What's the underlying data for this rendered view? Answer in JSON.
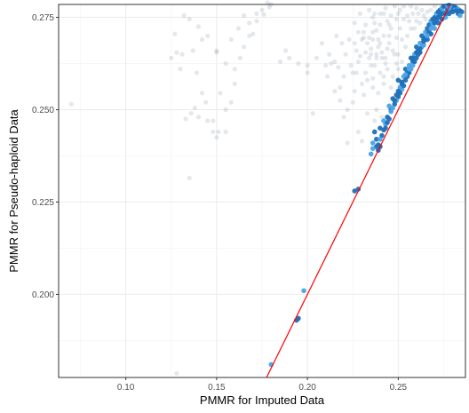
{
  "chart_data": {
    "type": "scatter",
    "xlabel": "PMMR for Imputed Data",
    "ylabel": "PMMR for Pseudo-haploid Data",
    "xlim": [
      0.063,
      0.287
    ],
    "ylim": [
      0.1775,
      0.2785
    ],
    "x_ticks": [
      0.1,
      0.15,
      0.2,
      0.25
    ],
    "x_tick_labels": [
      "0.10",
      "0.15",
      "0.20",
      "0.25"
    ],
    "y_ticks": [
      0.2,
      0.225,
      0.25,
      0.275
    ],
    "y_tick_labels": [
      "0.200",
      "0.225",
      "0.250",
      "0.275"
    ],
    "grid": true,
    "reference_line": {
      "type": "identity",
      "color": "#ff0000"
    },
    "colors": {
      "background_points": "#2f4f6f",
      "highlight_points": "#1f6fb8",
      "highlight_points_light": "#4aa3e8"
    },
    "series": [
      {
        "points": [
          [
            0.07,
            0.2515
          ],
          [
            0.128,
            0.1786
          ],
          [
            0.135,
            0.2315
          ],
          [
            0.14,
            0.248
          ],
          [
            0.138,
            0.2505
          ],
          [
            0.145,
            0.247
          ],
          [
            0.148,
            0.244
          ],
          [
            0.15,
            0.2425
          ],
          [
            0.142,
            0.2545
          ],
          [
            0.139,
            0.26
          ],
          [
            0.13,
            0.261
          ],
          [
            0.125,
            0.264
          ],
          [
            0.127,
            0.2705
          ],
          [
            0.132,
            0.2755
          ],
          [
            0.135,
            0.2745
          ],
          [
            0.14,
            0.2725
          ],
          [
            0.145,
            0.27
          ],
          [
            0.15,
            0.266
          ],
          [
            0.155,
            0.2625
          ],
          [
            0.158,
            0.269
          ],
          [
            0.162,
            0.272
          ],
          [
            0.165,
            0.2755
          ],
          [
            0.168,
            0.2735
          ],
          [
            0.17,
            0.2705
          ],
          [
            0.172,
            0.274
          ],
          [
            0.175,
            0.277
          ],
          [
            0.178,
            0.279
          ],
          [
            0.18,
            0.2785
          ],
          [
            0.176,
            0.2758
          ],
          [
            0.165,
            0.267
          ],
          [
            0.16,
            0.257
          ],
          [
            0.158,
            0.252
          ],
          [
            0.155,
            0.25
          ],
          [
            0.148,
            0.247
          ],
          [
            0.136,
            0.249
          ],
          [
            0.133,
            0.2475
          ],
          [
            0.144,
            0.252
          ],
          [
            0.152,
            0.2545
          ],
          [
            0.16,
            0.261
          ],
          [
            0.15,
            0.2655
          ],
          [
            0.142,
            0.269
          ],
          [
            0.137,
            0.266
          ],
          [
            0.131,
            0.265
          ],
          [
            0.128,
            0.2655
          ],
          [
            0.163,
            0.264
          ],
          [
            0.168,
            0.27
          ],
          [
            0.179,
            0.2778
          ],
          [
            0.172,
            0.276
          ],
          [
            0.155,
            0.244
          ],
          [
            0.151,
            0.244
          ],
          [
            0.19,
            0.264
          ],
          [
            0.195,
            0.2625
          ],
          [
            0.2,
            0.262
          ],
          [
            0.205,
            0.264
          ],
          [
            0.21,
            0.262
          ],
          [
            0.215,
            0.263
          ],
          [
            0.218,
            0.256
          ],
          [
            0.22,
            0.248
          ],
          [
            0.222,
            0.25
          ],
          [
            0.225,
            0.252
          ],
          [
            0.203,
            0.249
          ],
          [
            0.228,
            0.244
          ],
          [
            0.23,
            0.2415
          ],
          [
            0.222,
            0.241
          ],
          [
            0.232,
            0.26
          ],
          [
            0.235,
            0.262
          ],
          [
            0.238,
            0.265
          ],
          [
            0.24,
            0.268
          ],
          [
            0.242,
            0.27
          ],
          [
            0.245,
            0.268
          ],
          [
            0.248,
            0.265
          ],
          [
            0.25,
            0.261
          ],
          [
            0.252,
            0.263
          ],
          [
            0.254,
            0.267
          ],
          [
            0.246,
            0.272
          ],
          [
            0.244,
            0.274
          ],
          [
            0.24,
            0.276
          ],
          [
            0.236,
            0.275
          ],
          [
            0.232,
            0.273
          ],
          [
            0.228,
            0.271
          ],
          [
            0.226,
            0.268
          ],
          [
            0.234,
            0.2695
          ],
          [
            0.238,
            0.2715
          ],
          [
            0.243,
            0.2775
          ],
          [
            0.25,
            0.276
          ],
          [
            0.256,
            0.274
          ],
          [
            0.258,
            0.276
          ],
          [
            0.26,
            0.2775
          ],
          [
            0.262,
            0.2735
          ],
          [
            0.255,
            0.27
          ],
          [
            0.249,
            0.2695
          ],
          [
            0.247,
            0.266
          ],
          [
            0.241,
            0.264
          ],
          [
            0.237,
            0.262
          ],
          [
            0.233,
            0.258
          ],
          [
            0.231,
            0.254
          ],
          [
            0.236,
            0.256
          ],
          [
            0.239,
            0.2545
          ],
          [
            0.244,
            0.261
          ],
          [
            0.227,
            0.26
          ],
          [
            0.224,
            0.262
          ],
          [
            0.221,
            0.265
          ],
          [
            0.219,
            0.268
          ],
          [
            0.216,
            0.27
          ],
          [
            0.212,
            0.265
          ],
          [
            0.208,
            0.268
          ],
          [
            0.229,
            0.276
          ],
          [
            0.234,
            0.277
          ],
          [
            0.248,
            0.278
          ],
          [
            0.253,
            0.278
          ],
          [
            0.263,
            0.277
          ],
          [
            0.266,
            0.2765
          ],
          [
            0.259,
            0.272
          ],
          [
            0.242,
            0.259
          ],
          [
            0.238,
            0.25
          ],
          [
            0.241,
            0.248
          ],
          [
            0.246,
            0.256
          ],
          [
            0.229,
            0.2645
          ],
          [
            0.223,
            0.269
          ],
          [
            0.231,
            0.271
          ],
          [
            0.226,
            0.2735
          ],
          [
            0.237,
            0.2735
          ],
          [
            0.251,
            0.272
          ],
          [
            0.245,
            0.27
          ],
          [
            0.239,
            0.269
          ],
          [
            0.235,
            0.2665
          ],
          [
            0.232,
            0.2655
          ],
          [
            0.217,
            0.2615
          ],
          [
            0.213,
            0.2625
          ],
          [
            0.241,
            0.2655
          ],
          [
            0.252,
            0.269
          ],
          [
            0.257,
            0.272
          ],
          [
            0.26,
            0.274
          ],
          [
            0.264,
            0.2755
          ],
          [
            0.233,
            0.249
          ],
          [
            0.237,
            0.247
          ],
          [
            0.215,
            0.255
          ],
          [
            0.218,
            0.2525
          ],
          [
            0.2,
            0.26
          ],
          [
            0.185,
            0.263
          ],
          [
            0.188,
            0.266
          ],
          [
            0.211,
            0.259
          ],
          [
            0.226,
            0.255
          ],
          [
            0.23,
            0.257
          ],
          [
            0.243,
            0.2625
          ],
          [
            0.249,
            0.2625
          ],
          [
            0.24,
            0.26
          ],
          [
            0.236,
            0.2585
          ],
          [
            0.242,
            0.257
          ],
          [
            0.247,
            0.259
          ],
          [
            0.25,
            0.265
          ],
          [
            0.244,
            0.2665
          ],
          [
            0.239,
            0.267
          ],
          [
            0.236,
            0.269
          ],
          [
            0.233,
            0.268
          ],
          [
            0.23,
            0.269
          ],
          [
            0.234,
            0.264
          ],
          [
            0.228,
            0.263
          ],
          [
            0.225,
            0.26
          ],
          [
            0.22,
            0.259
          ],
          [
            0.245,
            0.273
          ],
          [
            0.249,
            0.2745
          ],
          [
            0.253,
            0.2745
          ],
          [
            0.24,
            0.273
          ],
          [
            0.237,
            0.276
          ],
          [
            0.242,
            0.276
          ],
          [
            0.246,
            0.2755
          ],
          [
            0.251,
            0.277
          ],
          [
            0.255,
            0.2755
          ],
          [
            0.257,
            0.278
          ],
          [
            0.261,
            0.276
          ],
          [
            0.265,
            0.2745
          ],
          [
            0.268,
            0.277
          ],
          [
            0.27,
            0.278
          ],
          [
            0.236,
            0.271
          ],
          [
            0.231,
            0.2695
          ],
          [
            0.227,
            0.266
          ],
          [
            0.235,
            0.265
          ],
          [
            0.238,
            0.264
          ],
          [
            0.243,
            0.264
          ]
        ]
      },
      {
        "points": [
          [
            0.18,
            0.181
          ],
          [
            0.194,
            0.193
          ],
          [
            0.195,
            0.1935
          ],
          [
            0.198,
            0.201
          ],
          [
            0.226,
            0.228
          ],
          [
            0.228,
            0.2285
          ],
          [
            0.235,
            0.238
          ],
          [
            0.24,
            0.24
          ],
          [
            0.238,
            0.242
          ],
          [
            0.236,
            0.241
          ],
          [
            0.237,
            0.244
          ],
          [
            0.24,
            0.245
          ],
          [
            0.242,
            0.247
          ],
          [
            0.244,
            0.248
          ],
          [
            0.246,
            0.25
          ],
          [
            0.243,
            0.246
          ],
          [
            0.241,
            0.243
          ],
          [
            0.239,
            0.239
          ],
          [
            0.245,
            0.251
          ],
          [
            0.247,
            0.253
          ],
          [
            0.249,
            0.254
          ],
          [
            0.251,
            0.256
          ],
          [
            0.252,
            0.257
          ],
          [
            0.25,
            0.258
          ],
          [
            0.253,
            0.259
          ],
          [
            0.255,
            0.26
          ],
          [
            0.254,
            0.261
          ],
          [
            0.256,
            0.262
          ],
          [
            0.258,
            0.263
          ],
          [
            0.257,
            0.264
          ],
          [
            0.259,
            0.265
          ],
          [
            0.261,
            0.266
          ],
          [
            0.26,
            0.267
          ],
          [
            0.262,
            0.268
          ],
          [
            0.264,
            0.269
          ],
          [
            0.263,
            0.27
          ],
          [
            0.265,
            0.271
          ],
          [
            0.266,
            0.272
          ],
          [
            0.267,
            0.273
          ],
          [
            0.268,
            0.274
          ],
          [
            0.269,
            0.2745
          ],
          [
            0.27,
            0.275
          ],
          [
            0.271,
            0.276
          ],
          [
            0.272,
            0.2765
          ],
          [
            0.273,
            0.277
          ],
          [
            0.274,
            0.2775
          ],
          [
            0.275,
            0.278
          ],
          [
            0.276,
            0.278
          ],
          [
            0.277,
            0.2782
          ],
          [
            0.278,
            0.2783
          ],
          [
            0.279,
            0.2781
          ],
          [
            0.28,
            0.278
          ],
          [
            0.281,
            0.2778
          ],
          [
            0.282,
            0.2775
          ],
          [
            0.283,
            0.2772
          ],
          [
            0.284,
            0.2768
          ],
          [
            0.278,
            0.276
          ],
          [
            0.276,
            0.275
          ],
          [
            0.274,
            0.2745
          ],
          [
            0.272,
            0.2735
          ],
          [
            0.27,
            0.272
          ],
          [
            0.268,
            0.2705
          ],
          [
            0.266,
            0.269
          ],
          [
            0.264,
            0.2675
          ],
          [
            0.262,
            0.2655
          ],
          [
            0.26,
            0.264
          ],
          [
            0.258,
            0.262
          ],
          [
            0.256,
            0.26
          ],
          [
            0.254,
            0.258
          ],
          [
            0.252,
            0.2555
          ],
          [
            0.25,
            0.2535
          ],
          [
            0.248,
            0.2515
          ],
          [
            0.246,
            0.2495
          ],
          [
            0.244,
            0.2465
          ],
          [
            0.242,
            0.2445
          ],
          [
            0.24,
            0.242
          ],
          [
            0.238,
            0.24
          ],
          [
            0.245,
            0.2475
          ],
          [
            0.247,
            0.2505
          ],
          [
            0.251,
            0.2545
          ],
          [
            0.253,
            0.2565
          ],
          [
            0.257,
            0.261
          ],
          [
            0.261,
            0.265
          ],
          [
            0.265,
            0.2695
          ],
          [
            0.269,
            0.273
          ],
          [
            0.273,
            0.2755
          ],
          [
            0.277,
            0.277
          ],
          [
            0.281,
            0.277
          ],
          [
            0.283,
            0.276
          ],
          [
            0.279,
            0.277
          ],
          [
            0.275,
            0.2765
          ],
          [
            0.271,
            0.2745
          ],
          [
            0.267,
            0.271
          ],
          [
            0.263,
            0.267
          ],
          [
            0.259,
            0.263
          ],
          [
            0.255,
            0.259
          ],
          [
            0.249,
            0.2525
          ],
          [
            0.243,
            0.245
          ],
          [
            0.239,
            0.2405
          ],
          [
            0.236,
            0.2395
          ],
          [
            0.28,
            0.2765
          ],
          [
            0.282,
            0.2768
          ],
          [
            0.278,
            0.2775
          ],
          [
            0.274,
            0.276
          ],
          [
            0.27,
            0.2735
          ],
          [
            0.266,
            0.27
          ],
          [
            0.262,
            0.2665
          ],
          [
            0.258,
            0.264
          ],
          [
            0.254,
            0.2595
          ],
          [
            0.25,
            0.255
          ],
          [
            0.285,
            0.2765
          ],
          [
            0.284,
            0.2755
          ],
          [
            0.276,
            0.276
          ],
          [
            0.272,
            0.275
          ],
          [
            0.268,
            0.272
          ],
          [
            0.264,
            0.2685
          ],
          [
            0.26,
            0.2655
          ],
          [
            0.256,
            0.261
          ],
          [
            0.252,
            0.2575
          ],
          [
            0.248,
            0.2525
          ]
        ]
      }
    ]
  }
}
